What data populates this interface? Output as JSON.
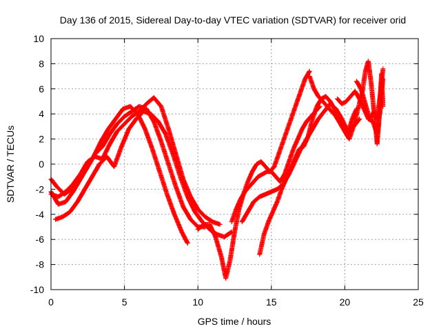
{
  "chart_data": {
    "type": "scatter",
    "title": "Day 136 of 2015, Sidereal Day-to-day VTEC variation (SDTVAR) for receiver orid",
    "xlabel": "GPS time / hours",
    "ylabel": "SDTVAR / TECUs",
    "xlim": [
      0,
      25
    ],
    "ylim": [
      -10,
      10
    ],
    "xticks": [
      "0",
      "5",
      "10",
      "15",
      "20",
      "25"
    ],
    "yticks": [
      "-10",
      "-8",
      "-6",
      "-4",
      "-2",
      "0",
      "2",
      "4",
      "6",
      "8",
      "10"
    ],
    "grid": true,
    "marker": "plus",
    "color": "#ff0000",
    "series": [
      {
        "x": [
          0.0,
          0.4,
          0.9,
          1.4,
          1.9,
          2.4,
          2.9,
          3.4,
          3.9,
          4.4,
          4.9,
          5.4,
          5.9,
          6.4,
          6.9,
          7.4,
          7.9,
          8.4,
          8.9,
          9.3
        ],
        "y": [
          -1.2,
          -1.8,
          -2.4,
          -2.0,
          -1.2,
          -0.4,
          0.6,
          1.8,
          2.8,
          3.6,
          4.4,
          4.6,
          4.0,
          2.8,
          1.2,
          -0.6,
          -2.4,
          -4.0,
          -5.4,
          -6.3
        ]
      },
      {
        "x": [
          0.0,
          0.5,
          1.0,
          1.5,
          2.0,
          2.5,
          3.0,
          3.5,
          4.0,
          4.5,
          5.0,
          5.5,
          6.0,
          6.5,
          7.0,
          7.5,
          8.0,
          8.5,
          9.0,
          9.5,
          10.0,
          10.5
        ],
        "y": [
          -2.2,
          -3.2,
          -3.0,
          -2.2,
          -1.2,
          -0.2,
          0.8,
          1.4,
          2.4,
          3.2,
          3.8,
          4.2,
          4.6,
          4.4,
          3.4,
          1.8,
          0.0,
          -1.8,
          -3.4,
          -4.4,
          -5.0,
          -5.0
        ]
      },
      {
        "x": [
          0.0,
          0.5,
          1.0,
          1.5,
          2.0,
          2.5,
          3.0,
          3.5,
          4.0,
          4.5,
          5.0,
          5.5,
          6.0,
          6.5,
          7.0,
          7.5,
          8.0,
          8.5,
          9.0,
          9.5,
          10.0,
          10.5,
          11.0,
          11.5
        ],
        "y": [
          -2.4,
          -2.6,
          -2.2,
          -1.6,
          -0.8,
          0.2,
          0.6,
          0.4,
          1.6,
          2.6,
          3.2,
          3.8,
          4.2,
          4.8,
          5.3,
          4.6,
          2.8,
          0.8,
          -1.2,
          -2.6,
          -3.6,
          -4.2,
          -4.6,
          -4.8
        ]
      },
      {
        "x": [
          0.3,
          0.8,
          1.3,
          1.8,
          2.3,
          2.8,
          3.3,
          3.8,
          4.3,
          4.8,
          5.3,
          5.8,
          6.3,
          6.8,
          7.3,
          7.8,
          8.3,
          8.8,
          9.3,
          9.8,
          10.3,
          10.8,
          11.3,
          11.8,
          12.3
        ],
        "y": [
          -4.4,
          -4.2,
          -3.8,
          -3.0,
          -2.0,
          -1.0,
          0.0,
          0.6,
          -0.2,
          1.4,
          2.8,
          3.6,
          4.2,
          4.0,
          3.4,
          2.4,
          0.8,
          -1.0,
          -2.6,
          -3.8,
          -4.6,
          -5.2,
          -5.6,
          -5.8,
          -5.4
        ]
      },
      {
        "x": [
          10.0,
          10.4,
          10.8,
          11.2,
          11.6,
          11.9,
          12.2,
          12.5,
          12.8,
          13.1,
          13.4,
          13.7,
          14.0,
          14.3,
          14.6,
          14.9,
          15.2,
          15.5,
          15.8,
          16.1,
          16.4,
          16.7,
          17.0,
          17.3,
          17.6
        ],
        "y": [
          -5.2,
          -4.8,
          -4.8,
          -5.8,
          -7.4,
          -9.1,
          -7.6,
          -5.4,
          -3.6,
          -2.4,
          -1.4,
          -0.6,
          0.0,
          0.2,
          -0.2,
          -0.6,
          -0.2,
          0.8,
          1.8,
          2.8,
          3.8,
          4.8,
          5.8,
          6.8,
          7.4
        ]
      },
      {
        "x": [
          12.3,
          12.6,
          12.9,
          13.2,
          13.5,
          13.8,
          14.1,
          14.4,
          14.7,
          15.0,
          15.3,
          15.6,
          15.9,
          16.2,
          16.5,
          16.8,
          17.1,
          17.4,
          17.7,
          18.0,
          18.3
        ],
        "y": [
          -4.6,
          -3.6,
          -2.8,
          -2.2,
          -1.8,
          -1.4,
          -1.0,
          -0.8,
          -0.6,
          -0.6,
          -1.0,
          -1.4,
          -0.8,
          0.2,
          1.2,
          2.0,
          2.8,
          3.4,
          3.8,
          4.2,
          4.6
        ]
      },
      {
        "x": [
          13.0,
          13.4,
          13.8,
          14.2,
          14.6,
          15.0,
          15.4,
          15.8,
          16.2,
          16.6,
          17.0,
          17.4,
          17.8,
          18.2,
          18.6,
          19.0,
          19.4,
          19.8,
          20.2,
          20.6,
          21.0
        ],
        "y": [
          -4.6,
          -3.8,
          -3.0,
          -2.6,
          -2.4,
          -2.2,
          -2.0,
          -1.6,
          -0.8,
          0.2,
          1.2,
          2.0,
          2.8,
          3.6,
          4.2,
          4.8,
          4.4,
          3.6,
          2.6,
          3.0,
          3.6
        ]
      },
      {
        "x": [
          14.2,
          14.5,
          14.8,
          15.1,
          15.4,
          15.7,
          16.0,
          16.3,
          16.6,
          16.9,
          17.2,
          17.5,
          17.8,
          18.1,
          18.4,
          18.7,
          19.0,
          19.3,
          19.6,
          19.9,
          20.2,
          20.5,
          20.8
        ],
        "y": [
          -7.2,
          -5.6,
          -4.6,
          -3.8,
          -3.0,
          -2.0,
          -1.2,
          -0.4,
          0.4,
          1.2,
          1.4,
          2.2,
          3.6,
          4.6,
          5.2,
          5.4,
          5.0,
          4.4,
          3.6,
          3.0,
          2.4,
          3.6,
          4.4
        ]
      },
      {
        "x": [
          17.6,
          17.9,
          18.2,
          18.5,
          18.8,
          19.1,
          19.4,
          19.7,
          20.0,
          20.3,
          20.6,
          20.9,
          21.2,
          21.4,
          21.6,
          21.8,
          22.0,
          22.2,
          22.4,
          22.6
        ],
        "y": [
          7.0,
          6.0,
          5.4,
          5.0,
          4.6,
          4.2,
          3.8,
          3.2,
          2.6,
          2.0,
          3.0,
          4.4,
          5.8,
          7.4,
          8.2,
          6.4,
          4.0,
          3.6,
          5.4,
          7.6
        ]
      },
      {
        "x": [
          19.5,
          19.8,
          20.1,
          20.4,
          20.7,
          21.0,
          21.3,
          21.6,
          21.9,
          22.2,
          22.4,
          22.6
        ],
        "y": [
          5.2,
          4.8,
          5.0,
          5.4,
          5.8,
          5.2,
          4.4,
          3.6,
          3.4,
          2.4,
          4.2,
          6.8
        ]
      },
      {
        "x": [
          20.8,
          21.1,
          21.4,
          21.7,
          22.0,
          22.2,
          22.3,
          22.4,
          22.5,
          22.6
        ],
        "y": [
          6.6,
          6.0,
          4.8,
          3.6,
          4.2,
          1.6,
          3.0,
          5.2,
          7.2,
          4.6
        ]
      }
    ]
  }
}
